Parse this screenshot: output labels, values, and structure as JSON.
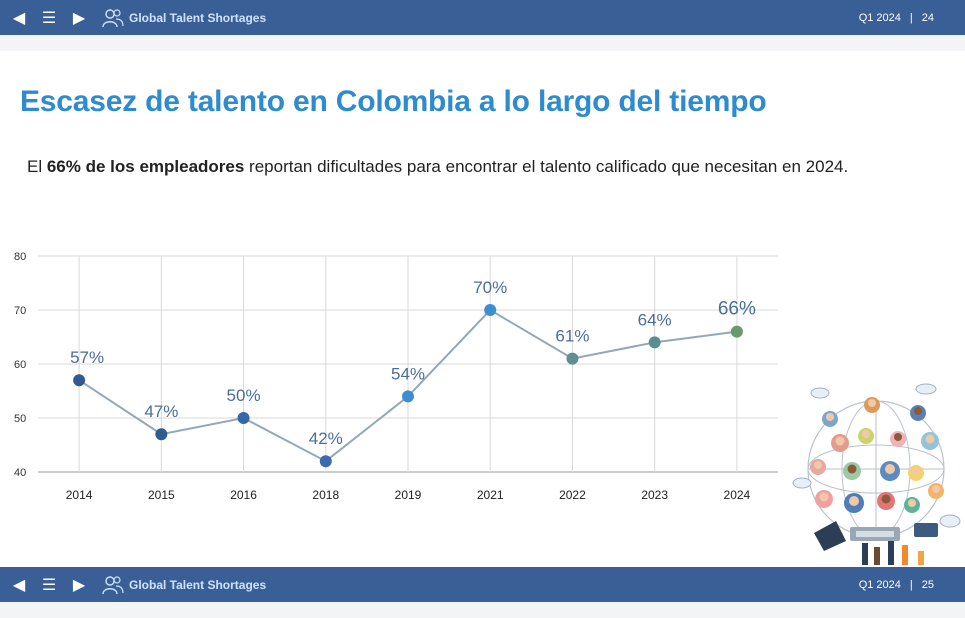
{
  "header": {
    "brand": "Global Talent Shortages",
    "period": "Q1 2024",
    "separator": "|",
    "page": "24"
  },
  "footer": {
    "brand": "Global Talent Shortages",
    "period": "Q1 2024",
    "separator": "|",
    "page": "25"
  },
  "nav": {
    "prev": "◀",
    "menu": "☰",
    "next": "▶"
  },
  "slide": {
    "title": "Escasez de talento en Colombia a lo largo del tiempo",
    "subtitle_prefix": "El ",
    "subtitle_bold": "66% de los empleadores",
    "subtitle_suffix": " reportan dificultades para encontrar el talento calificado que necesitan en 2024."
  },
  "chart_data": {
    "type": "line",
    "categories": [
      "2014",
      "2015",
      "2016",
      "2018",
      "2019",
      "2021",
      "2022",
      "2023",
      "2024"
    ],
    "values": [
      57,
      47,
      50,
      42,
      54,
      70,
      61,
      64,
      66
    ],
    "labels": [
      "57%",
      "47%",
      "50%",
      "42%",
      "54%",
      "70%",
      "61%",
      "64%",
      "66%"
    ],
    "ylim": [
      40,
      80
    ],
    "yticks": [
      "80",
      "70",
      "60",
      "50",
      "40"
    ],
    "grid": true,
    "line_color": "#93a8b5",
    "point_colors": [
      "#2f5b8f",
      "#2f5b8f",
      "#3468a6",
      "#3a6ab0",
      "#3d8ecf",
      "#3d8ecf",
      "#5f8f95",
      "#5d8e8f",
      "#6b9a6a"
    ],
    "label_color": "#4b6e99"
  }
}
